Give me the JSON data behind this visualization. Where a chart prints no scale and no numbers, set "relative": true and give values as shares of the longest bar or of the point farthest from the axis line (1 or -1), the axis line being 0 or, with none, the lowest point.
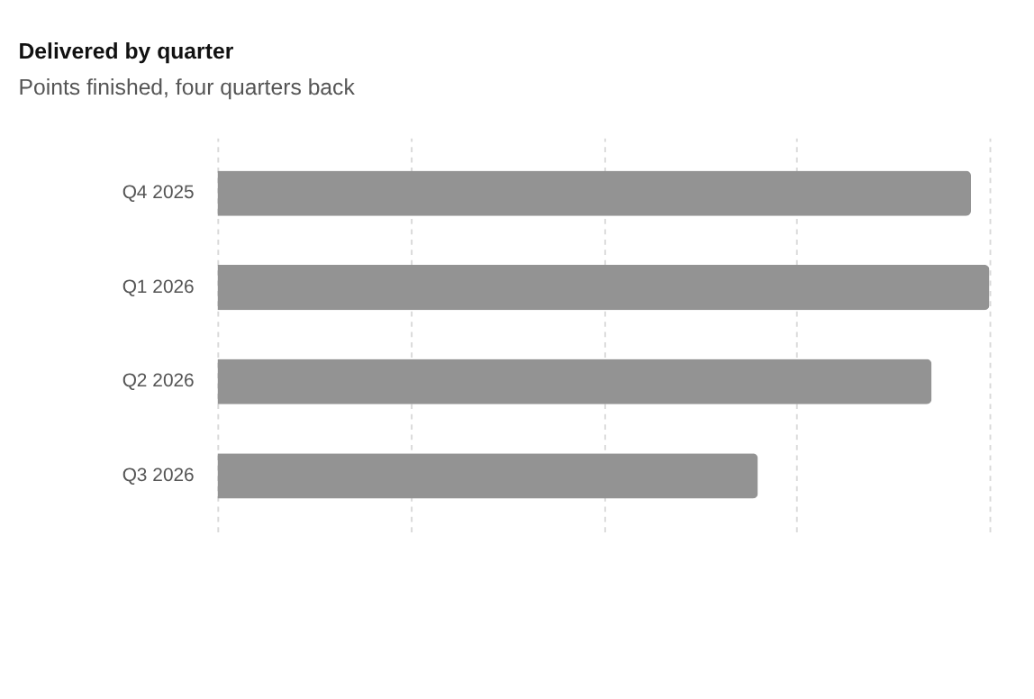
{
  "chart_data": {
    "type": "bar",
    "orientation": "horizontal",
    "relative": true,
    "title": "Delivered by quarter",
    "subtitle": "Points finished, four quarters back",
    "categories": [
      "Q4 2025",
      "Q1 2026",
      "Q2 2026",
      "Q3 2026"
    ],
    "values": [
      0.976,
      1,
      0.925,
      0.7
    ],
    "color": "#939393",
    "grid": "x"
  }
}
